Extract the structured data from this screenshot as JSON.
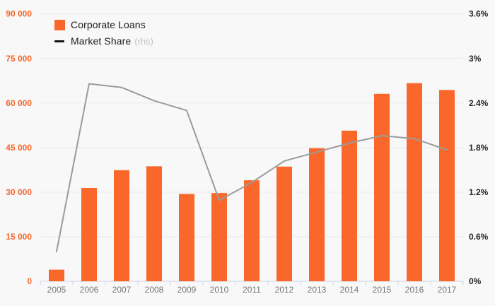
{
  "legend": {
    "series1_label": "Corporate Loans",
    "series2_label": "Market Share",
    "series2_suffix": "(rhs)"
  },
  "colors": {
    "background": "#f8f8f8",
    "bar": "#f9682a",
    "line": "#9b9b9b",
    "legend_line_swatch": "#141414",
    "left_axis_label": "#f4672c",
    "right_axis_label": "#262626",
    "x_axis_label": "#767676",
    "grid": "#e9e9e9",
    "axis": "#ccd5ea",
    "legend_text": "#1c1c1c",
    "legend_suffix": "#c3c3c3"
  },
  "chart_data": {
    "type": "bar",
    "subtype": "bar + line combo with dual y-axes",
    "title": "",
    "categories": [
      "2005",
      "2006",
      "2007",
      "2008",
      "2009",
      "2010",
      "2011",
      "2012",
      "2013",
      "2014",
      "2015",
      "2016",
      "2017"
    ],
    "series": [
      {
        "name": "Corporate Loans",
        "type": "bar",
        "axis": "left",
        "values": [
          3900,
          31400,
          37400,
          38700,
          29400,
          29700,
          34000,
          38600,
          44800,
          50700,
          63100,
          66700,
          64400
        ]
      },
      {
        "name": "Market Share (rhs)",
        "type": "line",
        "axis": "right",
        "values": [
          0.4,
          2.66,
          2.61,
          2.43,
          2.3,
          1.09,
          1.33,
          1.62,
          1.74,
          1.86,
          1.96,
          1.92,
          1.77
        ]
      }
    ],
    "left_axis": {
      "min": 0,
      "max": 90000,
      "step": 15000,
      "tick_labels": [
        "0",
        "15 000",
        "30 000",
        "45 000",
        "60 000",
        "75 000",
        "90 000"
      ]
    },
    "right_axis": {
      "min": 0,
      "max": 3.6,
      "step": 0.6,
      "tick_labels": [
        "0%",
        "0.6%",
        "1.2%",
        "1.8%",
        "2.4%",
        "3%",
        "3.6%"
      ]
    },
    "grid": true,
    "legend_position": "top-left"
  }
}
